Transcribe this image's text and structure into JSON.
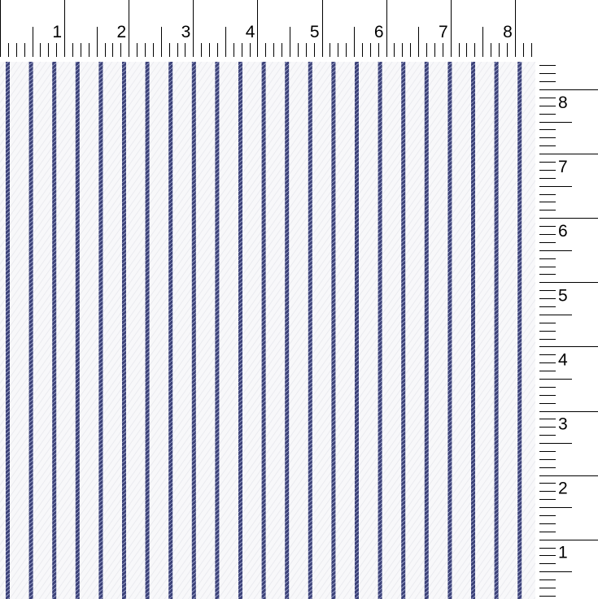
{
  "top_ruler": {
    "labels": [
      "1",
      "2",
      "3",
      "4",
      "5",
      "6",
      "7",
      "8"
    ]
  },
  "right_ruler": {
    "labels": [
      "8",
      "7",
      "6",
      "5",
      "4",
      "3",
      "2",
      "1"
    ]
  },
  "fabric": {
    "pattern": "vertical pinstripe",
    "ground_color": "#f7f7f9",
    "stripe_color": "#3b4178",
    "stripe_highlight": "#9aa0c8"
  },
  "colors": {
    "ruler_ink": "#000000",
    "background": "#ffffff"
  }
}
